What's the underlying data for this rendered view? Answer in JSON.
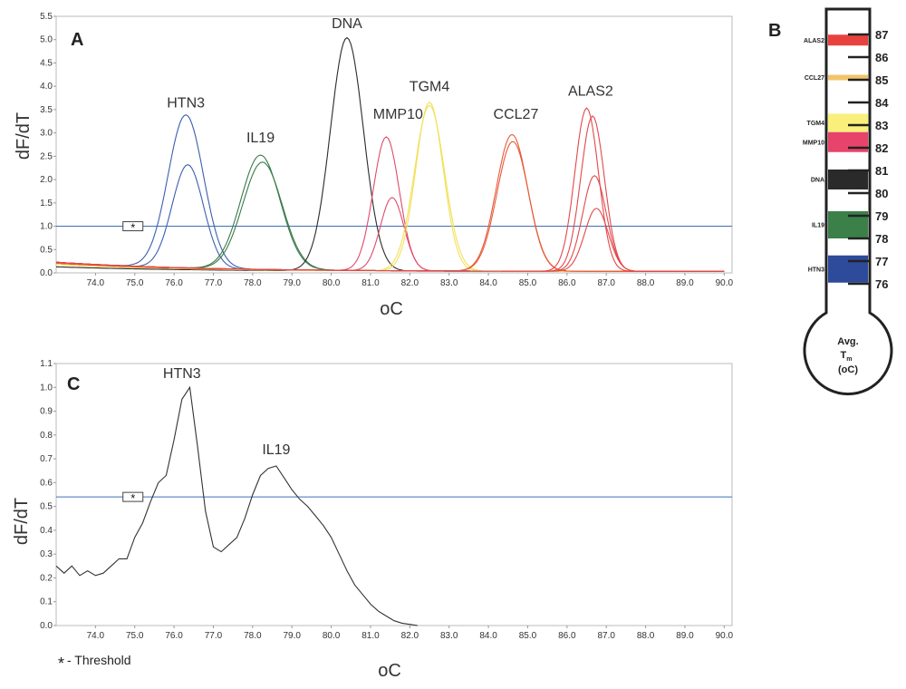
{
  "panels": {
    "a": "A",
    "b": "B",
    "c": "C"
  },
  "threshold_note": {
    "symbol": "*",
    "text": "- Threshold"
  },
  "thermometer": {
    "labels": [
      "ALAS2",
      "CCL27",
      "TGM4",
      "MMP10",
      "DNA",
      "IL19",
      "HTN3"
    ],
    "scale": [
      "87",
      "86",
      "85",
      "84",
      "83",
      "82",
      "81",
      "80",
      "79",
      "78",
      "77",
      "76"
    ],
    "bulb": {
      "line1": "Avg.",
      "T": "T",
      "sub": "m",
      "unit": "(oC)"
    },
    "colors": {
      "ALAS2": "#e8423f",
      "CCL27": "#f2c46a",
      "TGM4": "#f8f07a",
      "MMP10": "#e8436a",
      "DNA": "#2a2a2a",
      "IL19": "#3b8048",
      "HTN3": "#2d4b9a"
    }
  },
  "chart_data": [
    {
      "panel": "A",
      "type": "line",
      "xlabel": "oC",
      "ylabel": "dF/dT",
      "xlim": [
        73.0,
        90.2
      ],
      "ylim": [
        0.0,
        5.5
      ],
      "x_ticks": [
        "74.0",
        "75.0",
        "76.0",
        "77.0",
        "78.0",
        "79.0",
        "80.0",
        "81.0",
        "82.0",
        "83.0",
        "84.0",
        "85.0",
        "86.0",
        "87.0",
        "88.0",
        "89.0",
        "90.0"
      ],
      "y_ticks": [
        "0.0",
        "0.5",
        "1.0",
        "1.5",
        "2.0",
        "2.5",
        "3.0",
        "3.5",
        "4.0",
        "4.5",
        "5.0",
        "5.5"
      ],
      "threshold": 1.0,
      "peak_labels": [
        {
          "text": "HTN3",
          "x": 76.3,
          "y": 3.55
        },
        {
          "text": "IL19",
          "x": 78.2,
          "y": 2.8
        },
        {
          "text": "DNA",
          "x": 80.4,
          "y": 5.25
        },
        {
          "text": "MMP10",
          "x": 81.7,
          "y": 3.3
        },
        {
          "text": "TGM4",
          "x": 82.5,
          "y": 3.9
        },
        {
          "text": "CCL27",
          "x": 84.7,
          "y": 3.3
        },
        {
          "text": "ALAS2",
          "x": 86.6,
          "y": 3.8
        }
      ],
      "series": [
        {
          "group": "HTN3",
          "color": "#3b5fae",
          "peak_x": 76.3,
          "peak_y": 3.28,
          "width": 0.45,
          "base": 0.2
        },
        {
          "group": "HTN3",
          "color": "#3b5fae",
          "peak_x": 76.35,
          "peak_y": 2.22,
          "width": 0.4,
          "base": 0.18
        },
        {
          "group": "IL19",
          "color": "#3a7a4a",
          "peak_x": 78.2,
          "peak_y": 2.45,
          "width": 0.5,
          "base": 0.2
        },
        {
          "group": "IL19",
          "color": "#3a7a4a",
          "peak_x": 78.25,
          "peak_y": 2.3,
          "width": 0.5,
          "base": 0.2
        },
        {
          "group": "DNA",
          "color": "#2a2a2a",
          "peak_x": 80.4,
          "peak_y": 5.0,
          "width": 0.42,
          "base": 0.1
        },
        {
          "group": "MMP10",
          "color": "#e04a6a",
          "peak_x": 81.4,
          "peak_y": 2.87,
          "width": 0.33,
          "base": 0.18
        },
        {
          "group": "MMP10",
          "color": "#e04a6a",
          "peak_x": 81.55,
          "peak_y": 1.57,
          "width": 0.3,
          "base": 0.18
        },
        {
          "group": "TGM4",
          "color": "#f2e05a",
          "peak_x": 82.5,
          "peak_y": 3.62,
          "width": 0.35,
          "base": 0.15
        },
        {
          "group": "TGM4",
          "color": "#f2e05a",
          "peak_x": 82.5,
          "peak_y": 3.55,
          "width": 0.38,
          "base": 0.15
        },
        {
          "group": "CCL27",
          "color": "#e85a3a",
          "peak_x": 84.6,
          "peak_y": 2.93,
          "width": 0.4,
          "base": 0.18
        },
        {
          "group": "CCL27",
          "color": "#e85a3a",
          "peak_x": 84.62,
          "peak_y": 2.78,
          "width": 0.4,
          "base": 0.18
        },
        {
          "group": "ALAS2",
          "color": "#e2484a",
          "peak_x": 86.5,
          "peak_y": 3.5,
          "width": 0.3,
          "base": 0.2
        },
        {
          "group": "ALAS2",
          "color": "#e2484a",
          "peak_x": 86.65,
          "peak_y": 3.33,
          "width": 0.3,
          "base": 0.2
        },
        {
          "group": "ALAS2",
          "color": "#e2484a",
          "peak_x": 86.7,
          "peak_y": 2.05,
          "width": 0.3,
          "base": 0.2
        },
        {
          "group": "ALAS2",
          "color": "#e2484a",
          "peak_x": 86.75,
          "peak_y": 1.35,
          "width": 0.3,
          "base": 0.2
        }
      ]
    },
    {
      "panel": "C",
      "type": "line",
      "xlabel": "oC",
      "ylabel": "dF/dT",
      "xlim": [
        73.0,
        90.2
      ],
      "ylim": [
        0.0,
        1.1
      ],
      "x_ticks": [
        "74.0",
        "75.0",
        "76.0",
        "77.0",
        "78.0",
        "79.0",
        "80.0",
        "81.0",
        "82.0",
        "83.0",
        "84.0",
        "85.0",
        "86.0",
        "87.0",
        "88.0",
        "89.0",
        "90.0"
      ],
      "y_ticks": [
        "0.0",
        "0.1",
        "0.2",
        "0.3",
        "0.4",
        "0.5",
        "0.6",
        "0.7",
        "0.8",
        "0.9",
        "1.0",
        "1.1"
      ],
      "threshold": 0.54,
      "peak_labels": [
        {
          "text": "HTN3",
          "x": 76.2,
          "y": 1.04
        },
        {
          "text": "IL19",
          "x": 78.6,
          "y": 0.72
        }
      ],
      "series": [
        {
          "name": "",
          "color": "#333333",
          "x": [
            73.0,
            73.2,
            73.4,
            73.6,
            73.8,
            74.0,
            74.2,
            74.4,
            74.6,
            74.8,
            75.0,
            75.2,
            75.4,
            75.6,
            75.8,
            76.0,
            76.2,
            76.4,
            76.6,
            76.8,
            77.0,
            77.2,
            77.4,
            77.6,
            77.8,
            78.0,
            78.2,
            78.4,
            78.6,
            78.8,
            79.0,
            79.2,
            79.4,
            79.6,
            79.8,
            80.0,
            80.2,
            80.4,
            80.6,
            80.8,
            81.0,
            81.2,
            81.4,
            81.6,
            81.8,
            82.0,
            82.2
          ],
          "y": [
            0.25,
            0.22,
            0.25,
            0.21,
            0.23,
            0.21,
            0.22,
            0.25,
            0.28,
            0.28,
            0.37,
            0.43,
            0.52,
            0.6,
            0.63,
            0.78,
            0.95,
            1.0,
            0.75,
            0.48,
            0.33,
            0.31,
            0.34,
            0.37,
            0.45,
            0.55,
            0.63,
            0.66,
            0.67,
            0.62,
            0.57,
            0.53,
            0.5,
            0.46,
            0.42,
            0.37,
            0.3,
            0.23,
            0.17,
            0.13,
            0.09,
            0.06,
            0.04,
            0.02,
            0.01,
            0.005,
            0.0
          ]
        }
      ]
    }
  ]
}
